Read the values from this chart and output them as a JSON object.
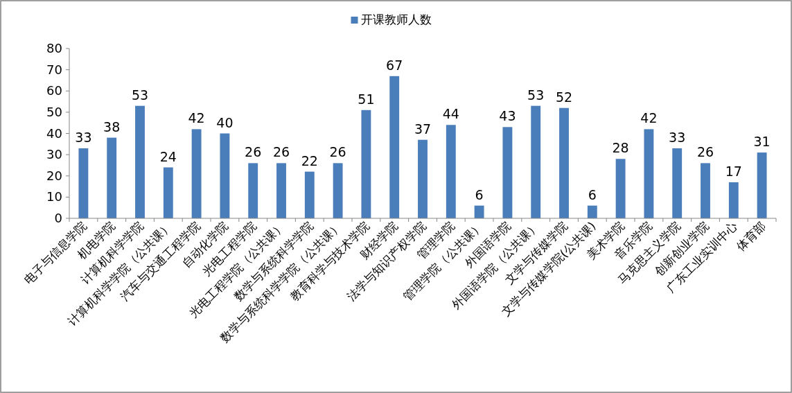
{
  "chart_data": {
    "type": "bar",
    "categories": [
      "电子与信息学院",
      "机电学院",
      "计算机科学学院",
      "计算机科学学院（公共课）",
      "汽车与交通工程学院",
      "自动化学院",
      "光电工程学院",
      "光电工程学院（公共课）",
      "数学与系统科学学院",
      "数学与系统科学学院（公共课）",
      "教育科学与技术学院",
      "财经学院",
      "法学与知识产权学院",
      "管理学院",
      "管理学院（公共课）",
      "外国语学院",
      "外国语学院（公共课）",
      "文学与传媒学院",
      "文学与传媒学院(公共课)",
      "美术学院",
      "音乐学院",
      "马克思主义学院",
      "创新创业学院",
      "广东工业实训中心",
      "体育部"
    ],
    "series": [
      {
        "name": "开课教师人数",
        "color": "#4a7ebb",
        "values": [
          33,
          38,
          53,
          24,
          42,
          40,
          26,
          26,
          22,
          26,
          51,
          67,
          37,
          44,
          6,
          43,
          53,
          52,
          6,
          28,
          42,
          33,
          26,
          17,
          31
        ]
      }
    ],
    "ylim": [
      0,
      80
    ],
    "yticks": [
      0,
      10,
      20,
      30,
      40,
      50,
      60,
      70,
      80
    ],
    "legend": "top",
    "data_labels": true,
    "grid": false
  }
}
